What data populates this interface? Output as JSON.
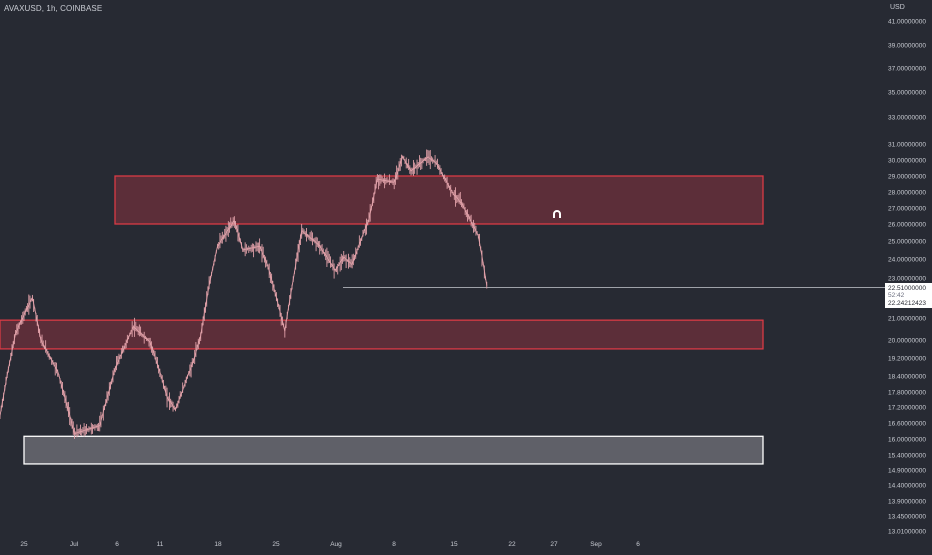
{
  "header": {
    "symbol_title": "AVAXUSD, 1h, COINBASE",
    "currency": "USD",
    "magnet_icon": "magnet-icon"
  },
  "colors": {
    "background": "#272a33",
    "candle": "#e0a0a8",
    "zone_red_fill": "#5c2e39",
    "zone_red_border": "#d93a45",
    "zone_grey_fill": "#5f6068",
    "zone_grey_border": "#ffffff",
    "line": "#c8cbd2",
    "axis_text": "#c9ccd3",
    "price_tag_bg": "#ffffff",
    "price_tag_text": "#272a33"
  },
  "chart_data": {
    "type": "line",
    "title": "AVAXUSD, 1h, COINBASE",
    "xlabel": "",
    "ylabel": "USD",
    "x_tick_labels": [
      "25",
      "Jul",
      "6",
      "11",
      "18",
      "25",
      "Aug",
      "8",
      "15",
      "22",
      "27",
      "Sep",
      "6"
    ],
    "y_tick_labels": [
      "41.00000000",
      "39.00000000",
      "37.00000000",
      "35.00000000",
      "33.00000000",
      "31.00000000",
      "30.00000000",
      "29.00000000",
      "28.00000000",
      "27.00000000",
      "26.00000000",
      "25.00000000",
      "24.00000000",
      "23.00000000",
      "21.00000000",
      "20.00000000",
      "19.20000000",
      "18.40000000",
      "17.80000000",
      "17.20000000",
      "16.60000000",
      "16.00000000",
      "15.40000000",
      "14.90000000",
      "14.40000000",
      "13.90000000",
      "13.45000000",
      "13.01000000"
    ],
    "ylim": [
      13.01,
      41.0
    ],
    "y_scale": "log",
    "grid": false,
    "series": [
      {
        "x": [
          "2022-06-22",
          "2022-06-24",
          "2022-06-26",
          "2022-06-27",
          "2022-06-29",
          "2022-07-01",
          "2022-07-02",
          "2022-07-04",
          "2022-07-06",
          "2022-07-08",
          "2022-07-10",
          "2022-07-12",
          "2022-07-13",
          "2022-07-15",
          "2022-07-16",
          "2022-07-17",
          "2022-07-18",
          "2022-07-20",
          "2022-07-21",
          "2022-07-23",
          "2022-07-24",
          "2022-07-26",
          "2022-07-27",
          "2022-07-28",
          "2022-07-30",
          "2022-08-01",
          "2022-08-02",
          "2022-08-03",
          "2022-08-05",
          "2022-08-06",
          "2022-08-08",
          "2022-08-09",
          "2022-08-10",
          "2022-08-12",
          "2022-08-13",
          "2022-08-15",
          "2022-08-16",
          "2022-08-18",
          "2022-08-19"
        ],
        "values": [
          16.6,
          20.3,
          22.0,
          20.0,
          18.6,
          16.2,
          16.3,
          16.5,
          18.9,
          20.6,
          19.9,
          17.6,
          17.1,
          18.9,
          20.2,
          22.6,
          24.7,
          26.2,
          24.5,
          24.7,
          23.6,
          20.4,
          22.9,
          25.6,
          24.8,
          23.4,
          24.1,
          23.7,
          26.3,
          28.8,
          28.6,
          30.2,
          29.3,
          30.2,
          29.8,
          27.9,
          27.3,
          25.3,
          22.6
        ]
      }
    ],
    "zones": [
      {
        "kind": "resistance",
        "price_low": 26.0,
        "price_high": 29.0
      },
      {
        "kind": "support",
        "price_low": 19.6,
        "price_high": 20.9
      },
      {
        "kind": "demand",
        "price_low": 15.1,
        "price_high": 16.1
      }
    ],
    "horizontal_line": {
      "price": 22.51
    },
    "price_tag": {
      "price": "22.51000000",
      "countdown": "52:42",
      "level": "22.24212423"
    }
  }
}
